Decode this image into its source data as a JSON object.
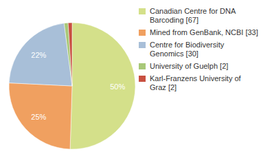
{
  "chart_data": {
    "type": "pie",
    "categories": [
      "Canadian Centre for DNA\nBarcoding [67]",
      "Mined from GenBank, NCBI [33]",
      "Centre for Biodiversity\nGenomics [30]",
      "University of Guelph [2]",
      "Karl-Franzens University of\nGraz [2]"
    ],
    "values": [
      50,
      25,
      22,
      1,
      1
    ],
    "value_labels": [
      "50%",
      "25%",
      "22%",
      null,
      null
    ],
    "colors": [
      "#d4e08a",
      "#f0a060",
      "#a8bfd8",
      "#a8c878",
      "#c85040"
    ],
    "data_labels": true,
    "legend": "upper right"
  }
}
